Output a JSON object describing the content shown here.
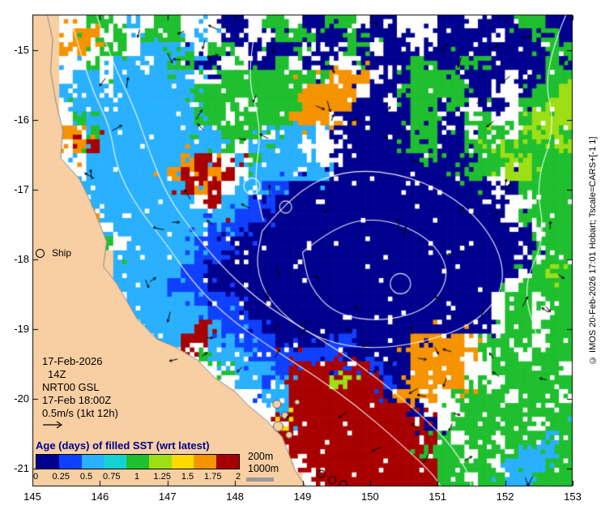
{
  "figure": {
    "x_tick_labels": [
      "145",
      "146",
      "147",
      "148",
      "149",
      "150",
      "151",
      "152",
      "153"
    ],
    "y_tick_labels": [
      "-15",
      "-16",
      "-17",
      "-18",
      "-19",
      "-20",
      "-21"
    ]
  },
  "annotations": {
    "ship_label": "Ship",
    "date_line": "17-Feb-2026",
    "time_line": "14Z",
    "model_line": "NRT00 GSL",
    "valid_line": "17-Feb 18:00Z",
    "vector_line": "0.5m/s (1kt 12h)"
  },
  "colorbar": {
    "title": "Age (days) of filled SST (wrt latest)",
    "tick_labels": [
      "0",
      "0.25",
      "0.5",
      "0.75",
      "1",
      "1.25",
      "1.5",
      "1.75",
      "2"
    ],
    "colors": [
      "#00008f",
      "#1040ff",
      "#29b0ff",
      "#15d2d2",
      "#1fbf2f",
      "#9ede14",
      "#ffd900",
      "#f59300",
      "#a80000"
    ]
  },
  "depth_legend": {
    "line1": "200m",
    "line2": "1000m"
  },
  "credit": "© IMOS 20-Feb-2026 17:01 Hobart; Tscale=CARS+[-1 1]",
  "chart_data": {
    "type": "heatmap",
    "title": "Age (days) of filled SST (wrt latest)",
    "lon_range": [
      145,
      153
    ],
    "lat_range": [
      -21.26,
      -14.49
    ],
    "value_range": [
      0,
      2
    ],
    "land_color": "#f8cfa2",
    "palette": {
      "0": "#00008f",
      "1": "#1040ff",
      "2": "#29b0ff",
      "3": "#15d2d2",
      "4": "#1fbf2f",
      "5": "#9ede14",
      "6": "#ffd900",
      "7": "#f59300",
      "8": "#a80000"
    },
    "grid_rows": [
      "LLww44w2w44www00w44w0044w00www00w0004400",
      "LLw77w4w444w2w00ww4440040000ww0000w00440",
      "LL77w44w2222w44w0000w0044w00w00000000044",
      "LLww4w22w24400ww004w00ww0000440044000040",
      "LLw22w222222ww4444444477 7w004444000w0044",
      "LL222w22222244444444 7777w004444400ww0445",
      "LLw22222222244 4w4444777700w04404w00w4455",
      "LLw42222222244w4444777w00000440044ww4555",
      "LL774222222222444w222w0000004400w44w4554",
      "LLw782222222224w2222www00000440044544445",
      "LLww2222222788w242222ww00000040004455444",
      "LL2w22222278878w222222000000000044w55444",
      "LLL22222222878w2211000000000000000w04444",
      "LLLL22222222w8221100000000000000000ww444",
      "LLLL7222222222211000000000000000000w4444",
      "LLLLLw222222211100000000000000 0000000w444",
      "LLLLL4w222221110000000000000000000000444",
      "LLLLLL2222221100000000000000000000000w44",
      "LLLLLL222221100000000000000000 00000 0w454",
      "LLLLLL22221110000000000000000000000w4444",
      "LLLLLLw222221110000000000000000000w44w44",
      "LLLLLLL2222221110000000000000 0000 0w44w444",
      "LLLLLLLw22228211100000000000000000w44w4444",
      "LLLLLLLLw22882211100001100007777w4444w44",
      "LLLLLLLLLLww422211111110000077777w44w444",
      "LLLLLLLLLLLLww422218888881007777ww44444w",
      "LLLLLLLLLLLLLww22128885588107777w4w44444",
      "LLLLLLLLLLLLLLLww22888888807 77w4444w444",
      "LLLLLLLLLLLLLLLwww28888888880www44444444",
      "LLLLLLLLLLLLLLLLLw688888888880w444444w44",
      "LLLLLLLLLLLLLLLLLw8888888888884w44w44424",
      "LLLLLLLLLLLLLLLLLLw8888888888444w4442224",
      "LLLLLLLLLLLLLLLLLLLw88888888884444w22244",
      "LLLLLLLLLLLLLLLLLLLLw88888888844w4422444"
    ],
    "coast": [
      [
        145.22,
        -14.488
      ],
      [
        145.3,
        -14.85
      ],
      [
        145.27,
        -15.3
      ],
      [
        145.35,
        -15.75
      ],
      [
        145.45,
        -16.15
      ],
      [
        145.42,
        -16.55
      ],
      [
        145.7,
        -16.85
      ],
      [
        145.85,
        -17.15
      ],
      [
        146.0,
        -17.5
      ],
      [
        146.1,
        -17.75
      ],
      [
        146.05,
        -18.1
      ],
      [
        146.25,
        -18.35
      ],
      [
        146.4,
        -18.6
      ],
      [
        146.55,
        -18.85
      ],
      [
        146.85,
        -19.15
      ],
      [
        147.1,
        -19.25
      ],
      [
        147.45,
        -19.45
      ],
      [
        147.7,
        -19.7
      ],
      [
        148.0,
        -19.9
      ],
      [
        148.2,
        -20.1
      ],
      [
        148.45,
        -20.3
      ],
      [
        148.7,
        -20.55
      ],
      [
        148.8,
        -20.8
      ],
      [
        148.9,
        -21.05
      ],
      [
        149.05,
        -21.26
      ]
    ],
    "contours": {
      "polylines": [
        [
          [
            145.55,
            -14.49
          ],
          [
            145.7,
            -15.0
          ],
          [
            145.9,
            -15.6
          ],
          [
            146.15,
            -16.1
          ],
          [
            146.25,
            -16.7
          ],
          [
            146.55,
            -17.25
          ],
          [
            147.0,
            -17.8
          ],
          [
            147.35,
            -18.3
          ],
          [
            147.85,
            -18.8
          ],
          [
            148.5,
            -19.25
          ],
          [
            149.15,
            -19.65
          ],
          [
            149.8,
            -20.1
          ],
          [
            150.4,
            -20.6
          ],
          [
            150.9,
            -21.05
          ],
          [
            151.05,
            -21.26
          ]
        ],
        [
          [
            145.95,
            -14.49
          ],
          [
            146.15,
            -15.1
          ],
          [
            146.5,
            -15.8
          ],
          [
            146.75,
            -16.5
          ],
          [
            147.0,
            -17.1
          ],
          [
            147.45,
            -17.7
          ],
          [
            147.9,
            -18.2
          ],
          [
            148.5,
            -18.7
          ],
          [
            149.2,
            -19.1
          ],
          [
            149.9,
            -19.55
          ],
          [
            150.6,
            -20.1
          ],
          [
            151.15,
            -20.6
          ],
          [
            151.45,
            -21.05
          ],
          [
            151.5,
            -21.26
          ]
        ],
        [
          [
            148.4,
            -17.6
          ],
          [
            148.9,
            -17.0
          ],
          [
            149.7,
            -16.7
          ],
          [
            150.6,
            -16.8
          ],
          [
            151.4,
            -17.2
          ],
          [
            151.9,
            -17.8
          ],
          [
            152.0,
            -18.4
          ],
          [
            151.6,
            -18.9
          ],
          [
            150.8,
            -19.2
          ],
          [
            149.9,
            -19.3
          ],
          [
            149.1,
            -19.1
          ],
          [
            148.5,
            -18.6
          ],
          [
            148.3,
            -18.1
          ],
          [
            148.4,
            -17.6
          ]
        ],
        [
          [
            149.0,
            -17.9
          ],
          [
            149.5,
            -17.5
          ],
          [
            150.2,
            -17.4
          ],
          [
            150.9,
            -17.7
          ],
          [
            151.2,
            -18.2
          ],
          [
            150.9,
            -18.7
          ],
          [
            150.2,
            -18.9
          ],
          [
            149.5,
            -18.8
          ],
          [
            149.1,
            -18.4
          ],
          [
            149.0,
            -17.9
          ]
        ],
        [
          [
            148.35,
            -14.49
          ],
          [
            148.15,
            -15.3
          ],
          [
            148.4,
            -16.1
          ],
          [
            148.28,
            -16.9
          ],
          [
            148.42,
            -17.45
          ]
        ],
        [
          [
            152.9,
            -14.49
          ],
          [
            152.55,
            -15.3
          ],
          [
            152.75,
            -16.1
          ],
          [
            152.45,
            -16.9
          ],
          [
            152.6,
            -17.7
          ],
          [
            152.25,
            -18.4
          ],
          [
            152.5,
            -19.2
          ]
        ]
      ],
      "circles": [
        [
          148.25,
          -16.95,
          0.12
        ],
        [
          148.75,
          -17.25,
          0.09
        ],
        [
          150.45,
          -18.35,
          0.15
        ]
      ]
    },
    "islands": [
      [
        148.62,
        -20.08,
        5
      ],
      [
        148.74,
        -20.24,
        4
      ],
      [
        148.64,
        -20.4,
        6
      ],
      [
        148.8,
        -20.52,
        4
      ],
      [
        148.92,
        -20.05,
        3
      ]
    ],
    "ships": [
      [
        149.28,
        -21.08
      ],
      [
        149.44,
        -21.17
      ],
      [
        149.6,
        -21.23
      ]
    ]
  }
}
